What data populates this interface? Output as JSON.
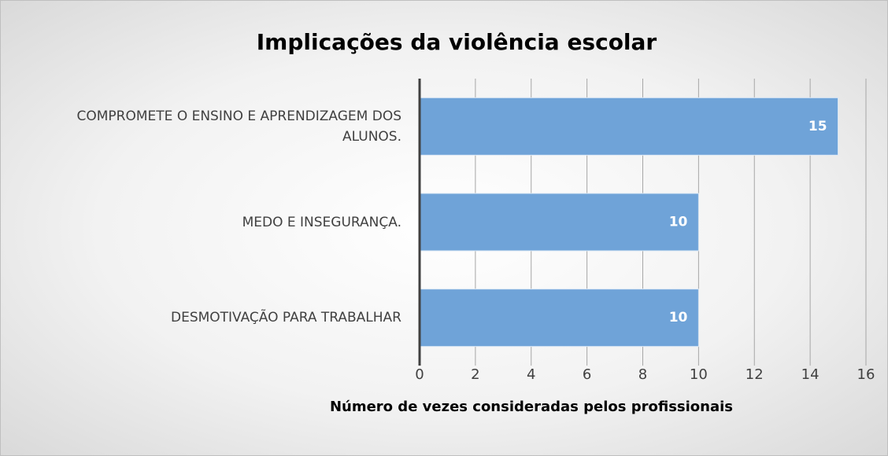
{
  "chart_data": {
    "type": "bar",
    "orientation": "horizontal",
    "title": "Implicações da violência escolar",
    "categories": [
      "COMPROMETE O ENSINO E APRENDIZAGEM DOS ALUNOS.",
      "MEDO E INSEGURANÇA.",
      "DESMOTIVAÇÃO PARA TRABALHAR"
    ],
    "values": [
      15,
      10,
      10
    ],
    "color": "#6fa3d8",
    "xlabel": "Número de vezes consideradas pelos profissionais",
    "xlim": [
      0,
      16
    ],
    "xticks": [
      0,
      2,
      4,
      6,
      8,
      10,
      12,
      14,
      16
    ],
    "grid": true
  }
}
